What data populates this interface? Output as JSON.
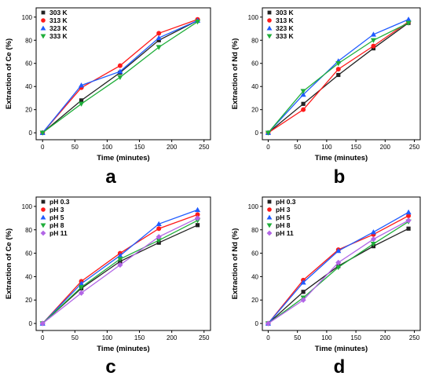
{
  "series_colors": [
    "#222222",
    "#ff1a1a",
    "#1f5bff",
    "#1fae3a",
    "#b266e6"
  ],
  "series_markers": [
    "square",
    "circle",
    "triangle-up",
    "triangle-down",
    "diamond"
  ],
  "chart_data": [
    {
      "type": "line",
      "panel_label": "a",
      "xlabel": "Time (minutes)",
      "ylabel": "Extraction of Ce (%)",
      "xlim": [
        -10,
        260
      ],
      "ylim": [
        -6,
        108
      ],
      "xticks": [
        0,
        50,
        100,
        150,
        200,
        250
      ],
      "yticks": [
        0,
        20,
        40,
        60,
        80,
        100
      ],
      "legend_position": "top-left",
      "x": [
        0,
        60,
        120,
        180,
        240
      ],
      "series": [
        {
          "name": "303 K",
          "values": [
            0,
            28,
            52,
            80,
            97
          ]
        },
        {
          "name": "313 K",
          "values": [
            0,
            39,
            58,
            86,
            98
          ]
        },
        {
          "name": "323 K",
          "values": [
            0,
            41,
            53,
            82,
            97
          ]
        },
        {
          "name": "333 K",
          "values": [
            0,
            25,
            48,
            74,
            96
          ]
        }
      ]
    },
    {
      "type": "line",
      "panel_label": "b",
      "xlabel": "Time (minutes)",
      "ylabel": "Extraction of Nd (%)",
      "xlim": [
        -10,
        260
      ],
      "ylim": [
        -6,
        108
      ],
      "xticks": [
        0,
        50,
        100,
        150,
        200,
        250
      ],
      "yticks": [
        0,
        20,
        40,
        60,
        80,
        100
      ],
      "legend_position": "top-left",
      "x": [
        0,
        60,
        120,
        180,
        240
      ],
      "series": [
        {
          "name": "303 K",
          "values": [
            0,
            25,
            50,
            73,
            95
          ]
        },
        {
          "name": "313 K",
          "values": [
            0,
            20,
            55,
            75,
            96
          ]
        },
        {
          "name": "323 K",
          "values": [
            0,
            33,
            62,
            85,
            98
          ]
        },
        {
          "name": "333 K",
          "values": [
            0,
            36,
            60,
            80,
            95
          ]
        }
      ]
    },
    {
      "type": "line",
      "panel_label": "c",
      "xlabel": "Time (minutes)",
      "ylabel": "Extraction of Ce (%)",
      "xlim": [
        -10,
        260
      ],
      "ylim": [
        -6,
        108
      ],
      "xticks": [
        0,
        50,
        100,
        150,
        200,
        250
      ],
      "yticks": [
        0,
        20,
        40,
        60,
        80,
        100
      ],
      "legend_position": "top-left",
      "x": [
        0,
        60,
        120,
        180,
        240
      ],
      "series": [
        {
          "name": "pH 0.3",
          "values": [
            0,
            30,
            53,
            69,
            84
          ]
        },
        {
          "name": "pH 3",
          "values": [
            0,
            36,
            60,
            81,
            93
          ]
        },
        {
          "name": "pH 5",
          "values": [
            0,
            34,
            58,
            85,
            97
          ]
        },
        {
          "name": "pH 8",
          "values": [
            0,
            31,
            55,
            71,
            88
          ]
        },
        {
          "name": "pH 11",
          "values": [
            0,
            26,
            50,
            74,
            90
          ]
        }
      ]
    },
    {
      "type": "line",
      "panel_label": "d",
      "xlabel": "Time (minutes)",
      "ylabel": "Extraction of Nd (%)",
      "xlim": [
        -10,
        260
      ],
      "ylim": [
        -6,
        108
      ],
      "xticks": [
        0,
        50,
        100,
        150,
        200,
        250
      ],
      "yticks": [
        0,
        20,
        40,
        60,
        80,
        100
      ],
      "legend_position": "top-left",
      "x": [
        0,
        60,
        120,
        180,
        240
      ],
      "series": [
        {
          "name": "pH 0.3",
          "values": [
            0,
            27,
            49,
            66,
            81
          ]
        },
        {
          "name": "pH 3",
          "values": [
            0,
            37,
            63,
            76,
            92
          ]
        },
        {
          "name": "pH 5",
          "values": [
            0,
            35,
            62,
            78,
            95
          ]
        },
        {
          "name": "pH 8",
          "values": [
            0,
            22,
            48,
            68,
            87
          ]
        },
        {
          "name": "pH 11",
          "values": [
            0,
            20,
            52,
            72,
            88
          ]
        }
      ]
    }
  ]
}
